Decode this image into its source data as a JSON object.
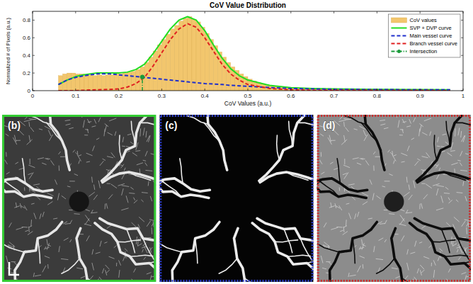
{
  "chart_data": {
    "type": "histogram",
    "title": "CoV Value Distribution",
    "x_label": "CoV Values (a.u.)",
    "y_label": "Normalized # of Pixels (a.u.)",
    "xlim": [
      0,
      1
    ],
    "ylim": [
      0,
      0.9
    ],
    "xticks": [
      0,
      0.1,
      0.2,
      0.3,
      0.4,
      0.5,
      0.6,
      0.7,
      0.8,
      0.9,
      1
    ],
    "yticks": [
      0,
      0.2,
      0.4,
      0.6,
      0.8
    ],
    "grid": false,
    "legend": "upper right",
    "series": [
      {
        "name": "CoV values",
        "type": "histogram",
        "color": "#f2c66d",
        "bins": [
          0.06,
          0.07,
          0.08,
          0.09,
          0.1,
          0.11,
          0.12,
          0.13,
          0.14,
          0.15,
          0.16,
          0.17,
          0.18,
          0.19,
          0.2,
          0.21,
          0.22,
          0.23,
          0.24,
          0.25,
          0.26,
          0.27,
          0.28,
          0.29,
          0.3,
          0.31,
          0.32,
          0.33,
          0.34,
          0.35,
          0.36,
          0.37,
          0.38,
          0.39,
          0.4,
          0.41,
          0.42,
          0.43,
          0.44,
          0.45,
          0.46,
          0.47,
          0.48,
          0.49,
          0.5,
          0.51,
          0.52,
          0.53,
          0.54,
          0.55,
          0.56,
          0.57,
          0.58,
          0.59,
          0.6,
          0.61,
          0.62,
          0.63,
          0.64,
          0.65,
          0.66,
          0.67,
          0.68,
          0.69,
          0.7,
          0.71,
          0.72,
          0.73,
          0.74,
          0.75,
          0.76,
          0.77,
          0.78,
          0.79,
          0.8,
          0.81,
          0.82,
          0.83,
          0.84,
          0.85,
          0.86,
          0.87,
          0.88,
          0.89,
          0.9,
          0.91,
          0.92,
          0.93,
          0.94,
          0.95,
          0.96
        ],
        "values": [
          0.17,
          0.19,
          0.2,
          0.2,
          0.19,
          0.19,
          0.18,
          0.18,
          0.17,
          0.18,
          0.17,
          0.18,
          0.18,
          0.19,
          0.19,
          0.2,
          0.21,
          0.22,
          0.24,
          0.27,
          0.32,
          0.38,
          0.45,
          0.52,
          0.58,
          0.64,
          0.7,
          0.74,
          0.79,
          0.82,
          0.84,
          0.81,
          0.78,
          0.72,
          0.65,
          0.58,
          0.51,
          0.44,
          0.38,
          0.32,
          0.27,
          0.23,
          0.19,
          0.16,
          0.13,
          0.11,
          0.09,
          0.08,
          0.07,
          0.06,
          0.05,
          0.045,
          0.04,
          0.035,
          0.03,
          0.028,
          0.026,
          0.025,
          0.024,
          0.022,
          0.021,
          0.02,
          0.02,
          0.019,
          0.018,
          0.018,
          0.017,
          0.016,
          0.016,
          0.015,
          0.015,
          0.014,
          0.014,
          0.013,
          0.013,
          0.013,
          0.012,
          0.012,
          0.012,
          0.011,
          0.011,
          0.011,
          0.011,
          0.01,
          0.01,
          0.01,
          0.01,
          0.01,
          0.01,
          0.01
        ]
      },
      {
        "name": "SVP + DVP curve",
        "type": "line",
        "color": "#22dd22",
        "line_style": "solid",
        "x": [
          0.06,
          0.08,
          0.1,
          0.12,
          0.15,
          0.18,
          0.2,
          0.22,
          0.24,
          0.26,
          0.28,
          0.3,
          0.32,
          0.34,
          0.36,
          0.38,
          0.4,
          0.42,
          0.44,
          0.46,
          0.48,
          0.5,
          0.55,
          0.6,
          0.65,
          0.7,
          0.8,
          0.9,
          0.97
        ],
        "values": [
          0.07,
          0.12,
          0.16,
          0.18,
          0.2,
          0.2,
          0.2,
          0.21,
          0.24,
          0.3,
          0.42,
          0.56,
          0.7,
          0.8,
          0.84,
          0.8,
          0.68,
          0.52,
          0.37,
          0.25,
          0.17,
          0.12,
          0.06,
          0.035,
          0.025,
          0.02,
          0.015,
          0.012,
          0.01
        ]
      },
      {
        "name": "Main vessel curve",
        "type": "line",
        "color": "#1f2fcc",
        "line_style": "dashed",
        "x": [
          0.06,
          0.08,
          0.1,
          0.12,
          0.15,
          0.18,
          0.2,
          0.22,
          0.24,
          0.26,
          0.28,
          0.3,
          0.32,
          0.34,
          0.36,
          0.38,
          0.4,
          0.42,
          0.44,
          0.46,
          0.48,
          0.5,
          0.55,
          0.6,
          0.65,
          0.7,
          0.8,
          0.9,
          0.97
        ],
        "values": [
          0.07,
          0.12,
          0.15,
          0.17,
          0.19,
          0.19,
          0.18,
          0.17,
          0.16,
          0.15,
          0.14,
          0.13,
          0.12,
          0.11,
          0.1,
          0.09,
          0.08,
          0.075,
          0.07,
          0.06,
          0.055,
          0.05,
          0.035,
          0.025,
          0.02,
          0.015,
          0.012,
          0.01,
          0.01
        ]
      },
      {
        "name": "Branch vessel curve",
        "type": "line",
        "color": "#e02020",
        "line_style": "dashed",
        "x": [
          0.06,
          0.08,
          0.1,
          0.12,
          0.15,
          0.18,
          0.2,
          0.22,
          0.24,
          0.26,
          0.28,
          0.3,
          0.32,
          0.34,
          0.36,
          0.38,
          0.4,
          0.42,
          0.44,
          0.46,
          0.48,
          0.5,
          0.55,
          0.6,
          0.65,
          0.7,
          0.8,
          0.9,
          0.97
        ],
        "values": [
          0,
          0,
          0,
          0.005,
          0.01,
          0.015,
          0.02,
          0.04,
          0.08,
          0.15,
          0.28,
          0.43,
          0.58,
          0.7,
          0.76,
          0.72,
          0.6,
          0.45,
          0.3,
          0.19,
          0.12,
          0.07,
          0.025,
          0.01,
          0.005,
          0.005,
          0.003,
          0.002,
          0
        ]
      },
      {
        "name": "Intersection",
        "type": "stem",
        "color": "#1a9a3a",
        "line_style": "dashdot",
        "marker": "circle",
        "x": [
          0.255
        ],
        "values": [
          0.155
        ]
      }
    ]
  },
  "panels": [
    {
      "label": "(b)",
      "color": "#33cc33",
      "line_style": "solid"
    },
    {
      "label": "(c)",
      "color": "#2f3fcc",
      "line_style": "dotted"
    },
    {
      "label": "(d)",
      "color": "#d02a2a",
      "line_style": "dotted"
    }
  ]
}
